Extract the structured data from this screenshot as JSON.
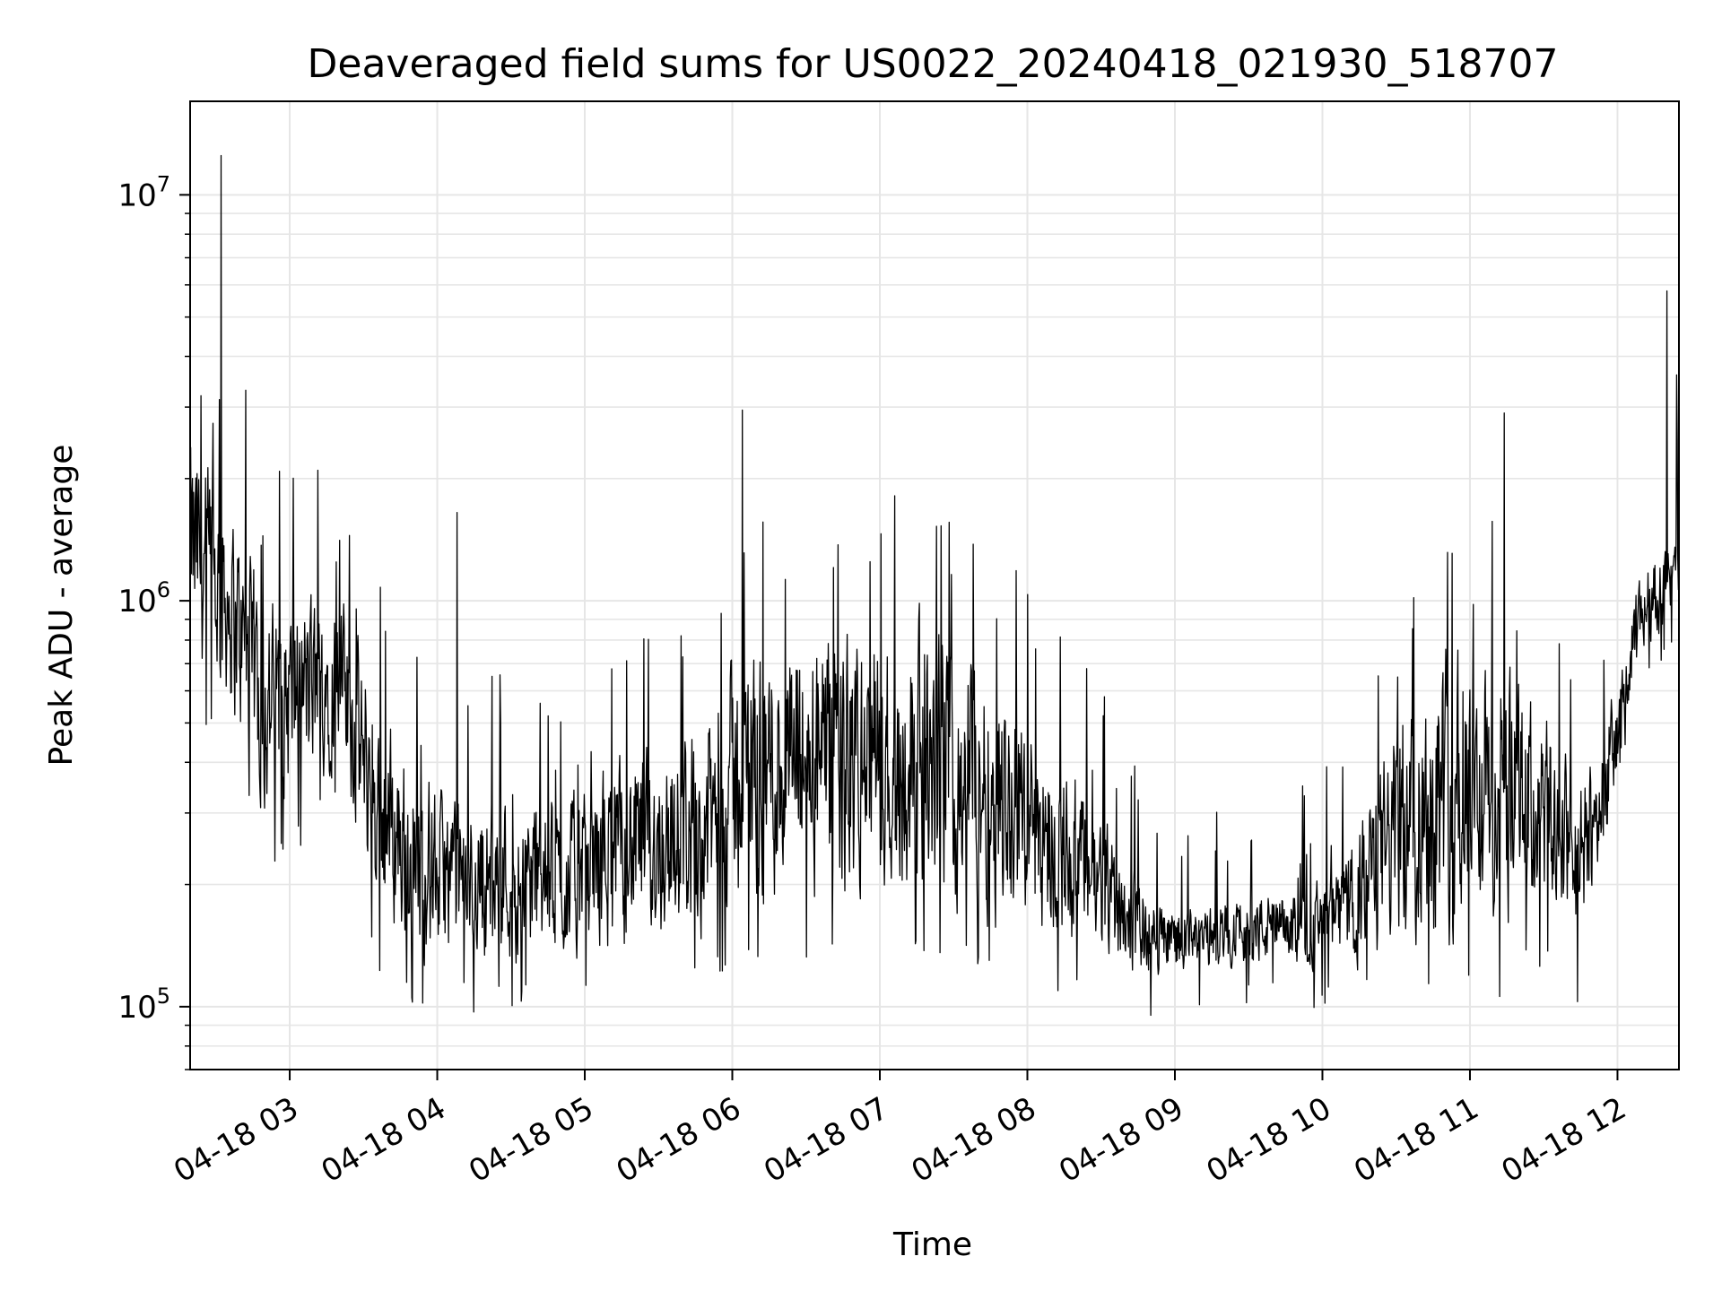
{
  "chart_data": {
    "type": "line",
    "title": "Deaveraged field sums for US0022_20240418_021930_518707",
    "xlabel": "Time",
    "ylabel": "Peak ADU - average",
    "x_start": "2024-04-18 02:19:30",
    "x_end": "2024-04-18 12:25:00",
    "ylim": [
      70000,
      17000000
    ],
    "yscale": "log",
    "grid": true,
    "line_color": "#000000",
    "x_tick_labels": [
      "04-18 03",
      "04-18 04",
      "04-18 05",
      "04-18 06",
      "04-18 07",
      "04-18 08",
      "04-18 09",
      "04-18 10",
      "04-18 11",
      "04-18 12"
    ],
    "y_tick_labels": [
      {
        "base": "10",
        "exp": "5",
        "value": 100000
      },
      {
        "base": "10",
        "exp": "6",
        "value": 1000000
      },
      {
        "base": "10",
        "exp": "7",
        "value": 10000000
      }
    ],
    "series_profile": [
      {
        "time": "02:20",
        "low": 600000,
        "high": 3000000
      },
      {
        "time": "02:35",
        "low": 500000,
        "high": 2000000
      },
      {
        "time": "02:50",
        "low": 250000,
        "high": 1200000
      },
      {
        "time": "03:05",
        "low": 300000,
        "high": 1200000
      },
      {
        "time": "03:20",
        "low": 350000,
        "high": 1200000
      },
      {
        "time": "03:35",
        "low": 150000,
        "high": 700000
      },
      {
        "time": "03:50",
        "low": 115000,
        "high": 450000
      },
      {
        "time": "04:10",
        "low": 115000,
        "high": 350000
      },
      {
        "time": "04:30",
        "low": 115000,
        "high": 400000
      },
      {
        "time": "04:50",
        "low": 115000,
        "high": 350000
      },
      {
        "time": "05:10",
        "low": 120000,
        "high": 450000
      },
      {
        "time": "05:30",
        "low": 130000,
        "high": 500000
      },
      {
        "time": "05:50",
        "low": 130000,
        "high": 600000
      },
      {
        "time": "06:05",
        "low": 150000,
        "high": 1000000
      },
      {
        "time": "06:30",
        "low": 150000,
        "high": 1000000
      },
      {
        "time": "07:00",
        "low": 150000,
        "high": 1050000
      },
      {
        "time": "07:30",
        "low": 150000,
        "high": 1050000
      },
      {
        "time": "07:50",
        "low": 140000,
        "high": 800000
      },
      {
        "time": "08:10",
        "low": 130000,
        "high": 500000
      },
      {
        "time": "08:30",
        "low": 115000,
        "high": 350000
      },
      {
        "time": "08:50",
        "low": 110000,
        "high": 200000
      },
      {
        "time": "09:10",
        "low": 120000,
        "high": 180000
      },
      {
        "time": "09:30",
        "low": 120000,
        "high": 200000
      },
      {
        "time": "09:50",
        "low": 120000,
        "high": 200000
      },
      {
        "time": "10:10",
        "low": 115000,
        "high": 250000
      },
      {
        "time": "10:30",
        "low": 120000,
        "high": 600000
      },
      {
        "time": "10:50",
        "low": 120000,
        "high": 1000000
      },
      {
        "time": "11:10",
        "low": 120000,
        "high": 900000
      },
      {
        "time": "11:30",
        "low": 150000,
        "high": 600000
      },
      {
        "time": "11:45",
        "low": 120000,
        "high": 400000
      },
      {
        "time": "12:00",
        "low": 300000,
        "high": 700000
      },
      {
        "time": "12:10",
        "low": 700000,
        "high": 1300000
      },
      {
        "time": "12:25",
        "low": 900000,
        "high": 1500000
      }
    ],
    "spikes": [
      {
        "time": "02:24",
        "value": 3200000
      },
      {
        "time": "02:32",
        "value": 12500000
      },
      {
        "time": "02:42",
        "value": 3300000
      },
      {
        "time": "04:08",
        "value": 1650000
      },
      {
        "time": "06:04",
        "value": 2950000
      },
      {
        "time": "11:14",
        "value": 2900000
      },
      {
        "time": "12:20",
        "value": 5800000
      },
      {
        "time": "12:24",
        "value": 3600000
      }
    ]
  }
}
